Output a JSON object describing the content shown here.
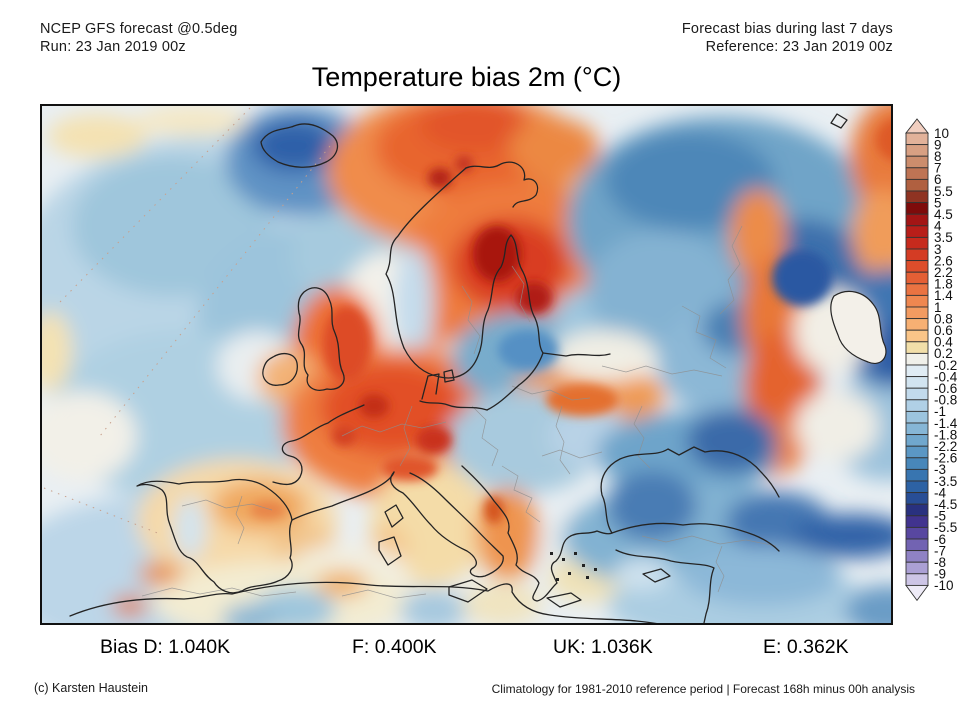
{
  "header": {
    "left_line1": "NCEP GFS forecast @0.5deg",
    "left_line2": "Run: 23 Jan 2019 00z",
    "right_line1": "Forecast bias during last 7 days",
    "right_line2": "Reference: 23 Jan 2019 00z"
  },
  "title": "Temperature bias 2m (°C)",
  "colorbar": {
    "unit": "°C",
    "labels": [
      "10",
      "9",
      "8",
      "7",
      "6",
      "5.5",
      "5",
      "4.5",
      "4",
      "3.5",
      "3",
      "2.6",
      "2.2",
      "1.8",
      "1.4",
      "1",
      "0.8",
      "0.6",
      "0.4",
      "0.2",
      "-0.2",
      "-0.4",
      "-0.6",
      "-0.8",
      "-1",
      "-1.4",
      "-1.8",
      "-2.2",
      "-2.6",
      "-3",
      "-3.5",
      "-4",
      "-4.5",
      "-5",
      "-5.5",
      "-6",
      "-7",
      "-8",
      "-9",
      "-10"
    ],
    "colors": [
      "#f2cfc0",
      "#e2b29a",
      "#d8a083",
      "#cc8d6d",
      "#bf7454",
      "#b06040",
      "#8f3322",
      "#7e0b0b",
      "#a31515",
      "#b81e19",
      "#c72a1d",
      "#d43c24",
      "#dd4d2b",
      "#e45f35",
      "#ea7342",
      "#ef8750",
      "#f39b61",
      "#f7b073",
      "#fac588",
      "#f2dfa9",
      "#f0f0ea",
      "#e0ecf4",
      "#d2e4f0",
      "#c2daec",
      "#b0d0e6",
      "#9cc4de",
      "#86b6d6",
      "#70a7cd",
      "#5b97c4",
      "#4887ba",
      "#3875b0",
      "#2d62a4",
      "#284e96",
      "#29317f",
      "#41338f",
      "#5847a0",
      "#7263b2",
      "#8f82c4",
      "#aba0d4",
      "#cdc5e6",
      "#eeebf7"
    ]
  },
  "bias_line": {
    "items": [
      "Bias D: 1.040K",
      "F: 0.400K",
      "UK: 1.036K",
      "E: 0.362K"
    ]
  },
  "footer": {
    "credit": "(c) Karsten Haustein",
    "note": "Climatology for 1981-2010 reference period | Forecast 168h minus 00h analysis"
  }
}
